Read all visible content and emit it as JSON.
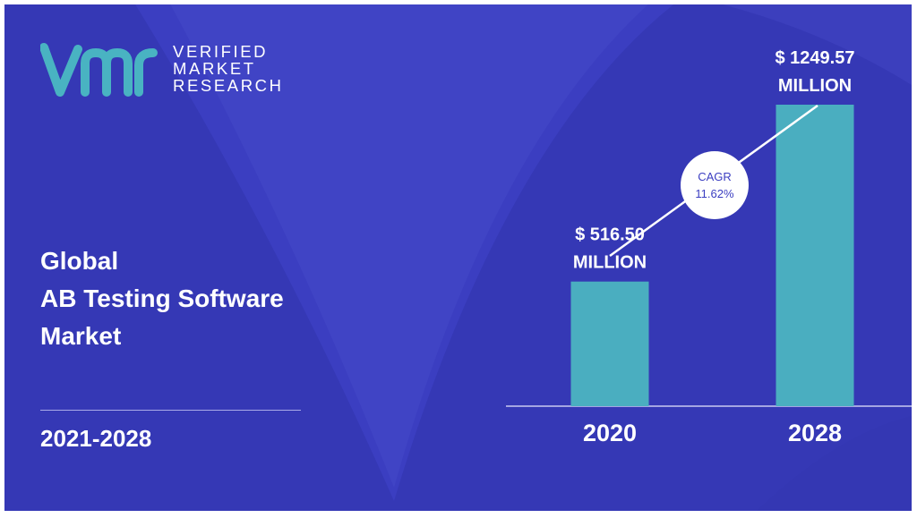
{
  "brand": {
    "line1": "VERIFIED",
    "line2": "MARKET",
    "line3": "RESEARCH"
  },
  "title": {
    "line1": "Global",
    "line2": "AB Testing Software",
    "line3": "Market"
  },
  "period": "2021-2028",
  "colors": {
    "background": "#3b3ec1",
    "bar": "#4aaec0",
    "text": "#ffffff",
    "cagr_badge_text": "#3b3ec1"
  },
  "chart_data": {
    "type": "bar",
    "categories": [
      "2020",
      "2028"
    ],
    "values": [
      516.5,
      1249.57
    ],
    "data_labels": [
      [
        "$ 516.50",
        "MILLION"
      ],
      [
        "$ 1249.57",
        "MILLION"
      ]
    ],
    "annotation": {
      "label": "CAGR",
      "value": "11.62%"
    },
    "ylim": [
      0,
      1249.57
    ],
    "grid": false,
    "legend": "none"
  }
}
